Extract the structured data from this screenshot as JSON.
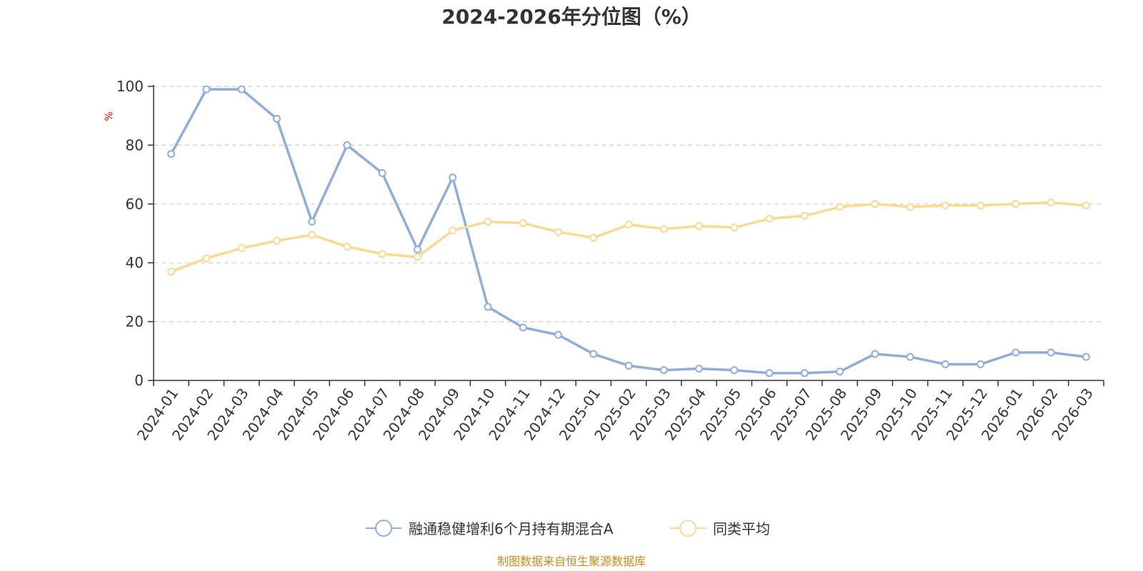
{
  "colors": {
    "series_main": "#8fadd8",
    "series_avg": "#fbd894",
    "grid": "#cccccc",
    "axis": "#333333",
    "unit": "#ff0000",
    "source": "#c38a1e"
  },
  "chart_data": {
    "type": "line",
    "title": "2024-2026年分位图（%）",
    "ylabel": "%",
    "xlabel": "",
    "ylim": [
      0,
      100
    ],
    "yticks": [
      0,
      20,
      40,
      60,
      80,
      100
    ],
    "grid": "horizontal-dashed",
    "legend_position": "bottom-center",
    "categories": [
      "2024-01",
      "2024-02",
      "2024-03",
      "2024-04",
      "2024-05",
      "2024-06",
      "2024-07",
      "2024-08",
      "2024-09",
      "2024-10",
      "2024-11",
      "2024-12",
      "2025-01",
      "2025-02",
      "2025-03",
      "2025-04",
      "2025-05",
      "2025-06",
      "2025-07",
      "2025-08",
      "2025-09",
      "2025-10",
      "2025-11",
      "2025-12",
      "2026-01",
      "2026-02",
      "2026-03"
    ],
    "series": [
      {
        "name": "融通稳健增利6个月持有期混合A",
        "values": [
          77,
          99,
          99,
          89,
          54,
          80,
          70.5,
          44.5,
          69,
          25,
          18,
          15.5,
          9,
          5,
          3.5,
          4,
          3.5,
          2.5,
          2.5,
          3,
          9,
          8,
          5.5,
          5.5,
          9.5,
          9.5,
          8
        ]
      },
      {
        "name": "同类平均",
        "values": [
          37,
          41.5,
          45,
          47.5,
          49.5,
          45.5,
          43,
          42,
          51,
          54,
          53.5,
          50.5,
          48.5,
          53,
          51.5,
          52.5,
          52,
          55,
          56,
          59,
          60,
          59,
          59.5,
          59.5,
          60,
          60.5,
          59.5
        ]
      }
    ]
  },
  "source_note": "制图数据来自恒生聚源数据库"
}
